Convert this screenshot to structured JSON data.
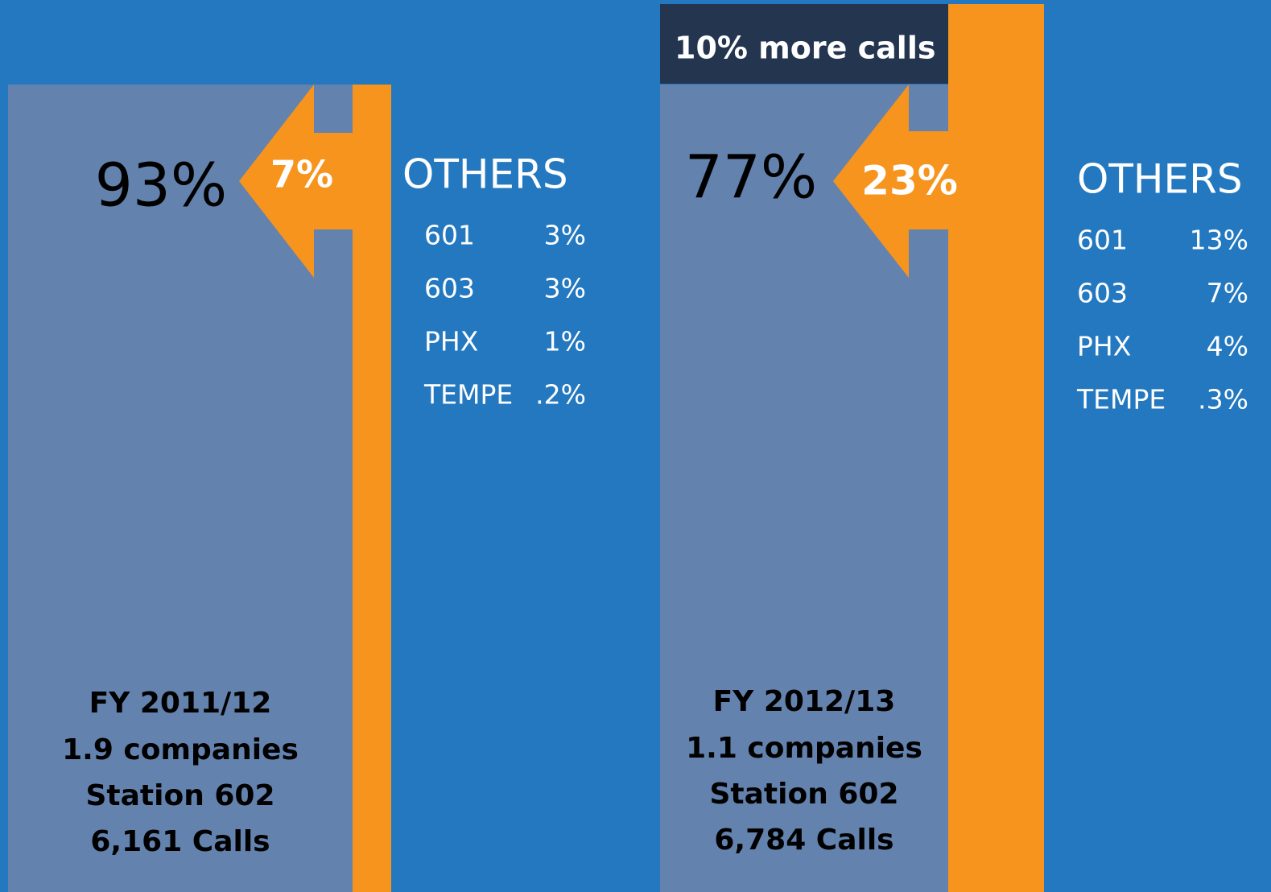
{
  "panels": [
    {
      "main": "93%",
      "shift": "7%",
      "others_title": "OTHERS",
      "others": [
        [
          "601",
          "3%"
        ],
        [
          "603",
          "3%"
        ],
        [
          "PHX",
          "1%"
        ],
        [
          "TEMPE",
          ".2%"
        ]
      ],
      "footer": [
        "FY 2011/12",
        "1.9 companies",
        "Station 602",
        "6,161 Calls"
      ]
    },
    {
      "badge": "10% more calls",
      "main": "77%",
      "shift": "23%",
      "others_title": "OTHERS",
      "others": [
        [
          "601",
          "13%"
        ],
        [
          "603",
          "7%"
        ],
        [
          "PHX",
          "4%"
        ],
        [
          "TEMPE",
          ".3%"
        ]
      ],
      "footer": [
        "FY 2012/13",
        "1.1 companies",
        "Station 602",
        "6,784 Calls"
      ]
    }
  ]
}
